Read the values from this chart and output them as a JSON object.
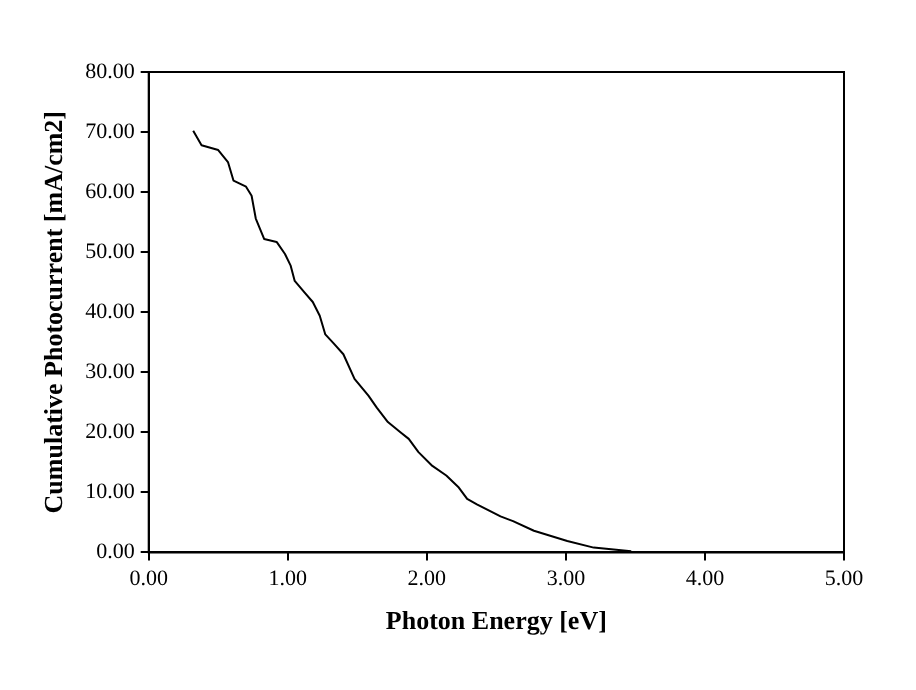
{
  "chart_data": {
    "type": "line",
    "xlabel": "Photon Energy [eV]",
    "ylabel": "Cumulative Photocurrent [mA/cm2]",
    "x": [
      0.32,
      0.38,
      0.5,
      0.57,
      0.61,
      0.7,
      0.74,
      0.77,
      0.83,
      0.92,
      0.98,
      1.02,
      1.05,
      1.12,
      1.18,
      1.23,
      1.27,
      1.33,
      1.4,
      1.48,
      1.58,
      1.64,
      1.72,
      1.81,
      1.87,
      1.94,
      2.04,
      2.14,
      2.23,
      2.29,
      2.36,
      2.53,
      2.62,
      2.77,
      3.01,
      3.2,
      3.47
    ],
    "values": [
      70.2,
      67.8,
      67.0,
      65.0,
      61.9,
      60.9,
      59.4,
      55.6,
      52.2,
      51.7,
      49.7,
      47.8,
      45.2,
      43.3,
      41.7,
      39.4,
      36.3,
      34.8,
      33.0,
      28.9,
      26.1,
      24.1,
      21.7,
      20.0,
      18.9,
      16.7,
      14.4,
      12.8,
      10.8,
      8.9,
      8.0,
      6.0,
      5.2,
      3.6,
      1.9,
      0.8,
      0.2
    ],
    "color": "#000000",
    "marker": "none",
    "line_style": "solid",
    "grid": false,
    "legend": false,
    "xlim": [
      0,
      5
    ],
    "xticks": [
      {
        "value": 0,
        "label": "0.00"
      },
      {
        "value": 1,
        "label": "1.00"
      },
      {
        "value": 2,
        "label": "2.00"
      },
      {
        "value": 3,
        "label": "3.00"
      },
      {
        "value": 4,
        "label": "4.00"
      },
      {
        "value": 5,
        "label": "5.00"
      }
    ],
    "ylim": [
      0,
      80
    ],
    "yticks": [
      {
        "value": 0,
        "label": "0.00"
      },
      {
        "value": 10,
        "label": "10.00"
      },
      {
        "value": 20,
        "label": "20.00"
      },
      {
        "value": 30,
        "label": "30.00"
      },
      {
        "value": 40,
        "label": "40.00"
      },
      {
        "value": 50,
        "label": "50.00"
      },
      {
        "value": 60,
        "label": "60.00"
      },
      {
        "value": 70,
        "label": "70.00"
      },
      {
        "value": 80,
        "label": "80.00"
      }
    ]
  }
}
